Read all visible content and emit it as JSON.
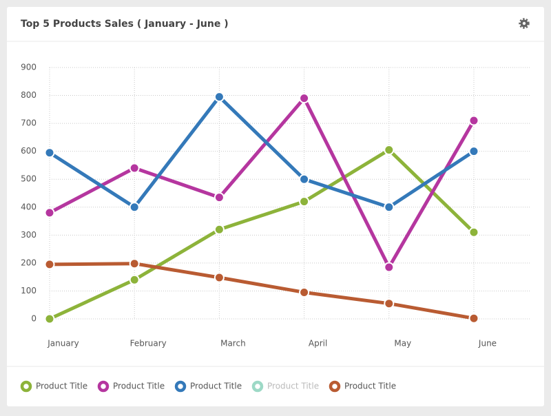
{
  "chart_data": {
    "type": "line",
    "title": "Top 5 Products Sales ( January - June )",
    "categories": [
      "January",
      "February",
      "March",
      "April",
      "May",
      "June"
    ],
    "series": [
      {
        "name": "Product Title",
        "color": "#8db33a",
        "values": [
          0,
          140,
          320,
          420,
          605,
          310
        ]
      },
      {
        "name": "Product Title",
        "color": "#b5369f",
        "values": [
          380,
          540,
          435,
          790,
          185,
          710
        ]
      },
      {
        "name": "Product Title",
        "color": "#3479b9",
        "values": [
          595,
          400,
          795,
          500,
          400,
          600
        ]
      },
      {
        "name": "Product Title",
        "color": "#9dd9c6",
        "hidden": true,
        "values": [
          null,
          null,
          null,
          null,
          null,
          null
        ]
      },
      {
        "name": "Product Title",
        "color": "#b95b32",
        "values": [
          195,
          198,
          148,
          95,
          55,
          2
        ]
      }
    ],
    "ylim": [
      0,
      900
    ],
    "yticks": [
      0,
      100,
      200,
      300,
      400,
      500,
      600,
      700,
      800,
      900
    ],
    "grid": true,
    "legend": "bottom"
  }
}
